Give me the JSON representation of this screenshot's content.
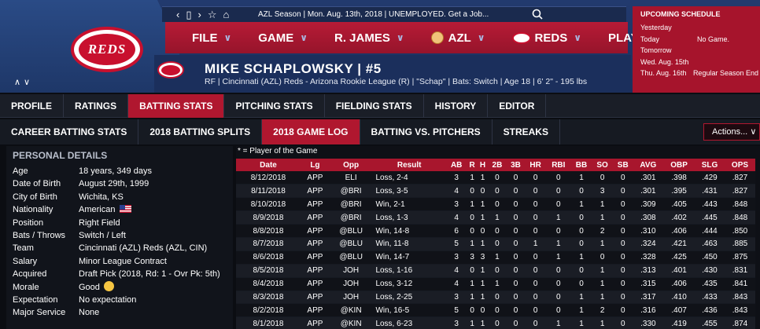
{
  "colors": {
    "navy": "#1b2f5c",
    "red": "#b0172f",
    "header_red": "#a8162d"
  },
  "header": {
    "logo_text": "REDS",
    "toolbar_icons": [
      "chevron-left-icon",
      "phone-icon",
      "chevron-right-icon",
      "star-icon",
      "home-icon"
    ],
    "status": "AZL Season  |  Mon. Aug. 13th, 2018  |  UNEMPLOYED. Get a Job...",
    "nav": [
      {
        "label": "FILE"
      },
      {
        "label": "GAME"
      },
      {
        "label": "R. JAMES"
      },
      {
        "label": "AZL"
      },
      {
        "label": "REDS"
      },
      {
        "label": "PLAY"
      }
    ]
  },
  "player": {
    "name": "MIKE SCHAPLOWSKY  |  #5",
    "details": "RF | Cincinnati (AZL) Reds - Arizona Rookie League (R)  |  \"Schap\" | Bats: Switch  |  Age 18  |  6' 2\" - 195 lbs"
  },
  "schedule": {
    "title": "UPCOMING SCHEDULE",
    "rows": [
      {
        "day": "Yesterday",
        "info": ""
      },
      {
        "day": "Today",
        "info": "No Game."
      },
      {
        "day": "Tomorrow",
        "info": ""
      },
      {
        "day": "Wed. Aug. 15th",
        "info": ""
      },
      {
        "day": "Thu. Aug. 16th",
        "info": "Regular Season End"
      }
    ]
  },
  "tabs_main": [
    "PROFILE",
    "RATINGS",
    "BATTING STATS",
    "PITCHING STATS",
    "FIELDING STATS",
    "HISTORY",
    "EDITOR"
  ],
  "tabs_sub": [
    "CAREER BATTING STATS",
    "2018 BATTING SPLITS",
    "2018 GAME LOG",
    "BATTING VS. PITCHERS",
    "STREAKS"
  ],
  "actions_label": "Actions...",
  "personal": {
    "heading": "PERSONAL DETAILS",
    "rows": [
      {
        "k": "Age",
        "v": "18 years, 349 days"
      },
      {
        "k": "Date of Birth",
        "v": "August 29th, 1999"
      },
      {
        "k": "City of Birth",
        "v": "Wichita, KS"
      },
      {
        "k": "Nationality",
        "v": "American"
      },
      {
        "k": "Position",
        "v": "Right Field"
      },
      {
        "k": "Bats / Throws",
        "v": "Switch / Left"
      },
      {
        "k": "Team",
        "v": "Cincinnati (AZL) Reds (AZL, CIN)"
      },
      {
        "k": "Salary",
        "v": "Minor League Contract"
      },
      {
        "k": "Acquired",
        "v": "Draft Pick (2018, Rd: 1 - Ovr Pk: 5th)"
      },
      {
        "k": "Morale",
        "v": "Good"
      },
      {
        "k": "Expectation",
        "v": "No expectation"
      },
      {
        "k": "Major Service",
        "v": "None"
      }
    ]
  },
  "gamelog": {
    "note": "* = Player of the Game",
    "columns": [
      "Date",
      "Lg",
      "Opp",
      "Result",
      "AB",
      "R",
      "H",
      "2B",
      "3B",
      "HR",
      "RBI",
      "BB",
      "SO",
      "SB",
      "AVG",
      "OBP",
      "SLG",
      "OPS"
    ],
    "rows": [
      [
        "8/12/2018",
        "APP",
        "ELI",
        "Loss, 2-4",
        "3",
        "1",
        "1",
        "0",
        "0",
        "0",
        "0",
        "1",
        "0",
        "0",
        ".301",
        ".398",
        ".429",
        ".827"
      ],
      [
        "8/11/2018",
        "APP",
        "@BRI",
        "Loss, 3-5",
        "4",
        "0",
        "0",
        "0",
        "0",
        "0",
        "0",
        "0",
        "3",
        "0",
        ".301",
        ".395",
        ".431",
        ".827"
      ],
      [
        "8/10/2018",
        "APP",
        "@BRI",
        "Win, 2-1",
        "3",
        "1",
        "1",
        "0",
        "0",
        "0",
        "0",
        "1",
        "1",
        "0",
        ".309",
        ".405",
        ".443",
        ".848"
      ],
      [
        "8/9/2018",
        "APP",
        "@BRI",
        "Loss, 1-3",
        "4",
        "0",
        "1",
        "1",
        "0",
        "0",
        "1",
        "0",
        "1",
        "0",
        ".308",
        ".402",
        ".445",
        ".848"
      ],
      [
        "8/8/2018",
        "APP",
        "@BLU",
        "Win, 14-8",
        "6",
        "0",
        "0",
        "0",
        "0",
        "0",
        "0",
        "0",
        "2",
        "0",
        ".310",
        ".406",
        ".444",
        ".850"
      ],
      [
        "8/7/2018",
        "APP",
        "@BLU",
        "Win, 11-8",
        "5",
        "1",
        "1",
        "0",
        "0",
        "1",
        "1",
        "0",
        "1",
        "0",
        ".324",
        ".421",
        ".463",
        ".885"
      ],
      [
        "8/6/2018",
        "APP",
        "@BLU",
        "Win, 14-7",
        "3",
        "3",
        "3",
        "1",
        "0",
        "0",
        "1",
        "1",
        "0",
        "0",
        ".328",
        ".425",
        ".450",
        ".875"
      ],
      [
        "8/5/2018",
        "APP",
        "JOH",
        "Loss, 1-16",
        "4",
        "0",
        "1",
        "0",
        "0",
        "0",
        "0",
        "0",
        "1",
        "0",
        ".313",
        ".401",
        ".430",
        ".831"
      ],
      [
        "8/4/2018",
        "APP",
        "JOH",
        "Loss, 3-12",
        "4",
        "1",
        "1",
        "1",
        "0",
        "0",
        "0",
        "0",
        "1",
        "0",
        ".315",
        ".406",
        ".435",
        ".841"
      ],
      [
        "8/3/2018",
        "APP",
        "JOH",
        "Loss, 2-25",
        "3",
        "1",
        "1",
        "0",
        "0",
        "0",
        "0",
        "1",
        "1",
        "0",
        ".317",
        ".410",
        ".433",
        ".843"
      ],
      [
        "8/2/2018",
        "APP",
        "@KIN",
        "Win, 16-5",
        "5",
        "0",
        "0",
        "0",
        "0",
        "0",
        "0",
        "1",
        "2",
        "0",
        ".316",
        ".407",
        ".436",
        ".843"
      ],
      [
        "8/1/2018",
        "APP",
        "@KIN",
        "Loss, 6-23",
        "3",
        "1",
        "1",
        "0",
        "0",
        "0",
        "1",
        "1",
        "1",
        "0",
        ".330",
        ".419",
        ".455",
        ".874"
      ]
    ]
  }
}
